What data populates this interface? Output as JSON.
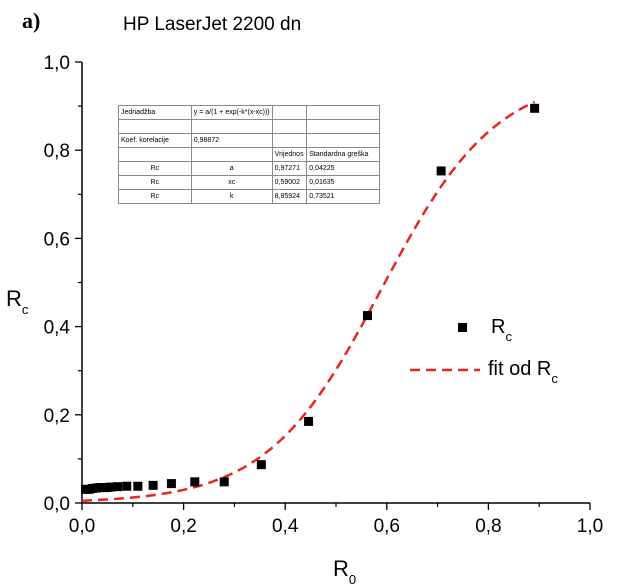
{
  "panel_label": "a)",
  "chart_data": {
    "type": "scatter",
    "title": "HP LaserJet 2200 dn",
    "xlabel": "R",
    "xlabel_sub": "0",
    "ylabel": "R",
    "ylabel_sub": "c",
    "xlim": [
      0.0,
      1.0
    ],
    "ylim": [
      0.0,
      1.0
    ],
    "x_ticks": [
      "0,0",
      "0,2",
      "0,4",
      "0,6",
      "0,8",
      "1,0"
    ],
    "y_ticks": [
      "0,0",
      "0,2",
      "0,4",
      "0,6",
      "0,8",
      "1,0"
    ],
    "grid": false,
    "legend_position": "center-right",
    "series": [
      {
        "name": "R",
        "name_sub": "c",
        "marker": "square",
        "color": "#000000",
        "x": [
          0.007,
          0.014,
          0.021,
          0.028,
          0.035,
          0.042,
          0.049,
          0.056,
          0.07,
          0.088,
          0.11,
          0.14,
          0.176,
          0.222,
          0.28,
          0.353,
          0.446,
          0.562,
          0.707,
          0.891
        ],
        "y": [
          0.031,
          0.031,
          0.033,
          0.034,
          0.035,
          0.035,
          0.035,
          0.036,
          0.037,
          0.038,
          0.038,
          0.04,
          0.044,
          0.048,
          0.048,
          0.087,
          0.185,
          0.425,
          0.753,
          0.895
        ]
      },
      {
        "name": "fit od R",
        "name_sub": "c",
        "type": "line",
        "style": "dashed",
        "color": "#e8261f",
        "model": "y = a/(1 + exp(-k*(x-xc)))",
        "params": {
          "a": 0.97271,
          "xc": 0.59002,
          "k": 8.85924
        },
        "x_range": [
          0.0,
          0.891
        ]
      }
    ],
    "fit_table": {
      "rows": [
        [
          "Jednadžba",
          "y = a/(1 + exp(-k*(x-xc)))",
          "",
          ""
        ],
        [
          "",
          "",
          "",
          ""
        ],
        [
          "Koef. korelacije",
          "0,98872",
          "",
          ""
        ],
        [
          "",
          "",
          "Vrijednos",
          "Standardna greška"
        ],
        [
          "Rc",
          "a",
          "0,97271",
          "0,04225"
        ],
        [
          "Rc",
          "xc",
          "0,59002",
          "0,01635"
        ],
        [
          "Rc",
          "k",
          "8,85924",
          "0,73521"
        ]
      ]
    }
  }
}
